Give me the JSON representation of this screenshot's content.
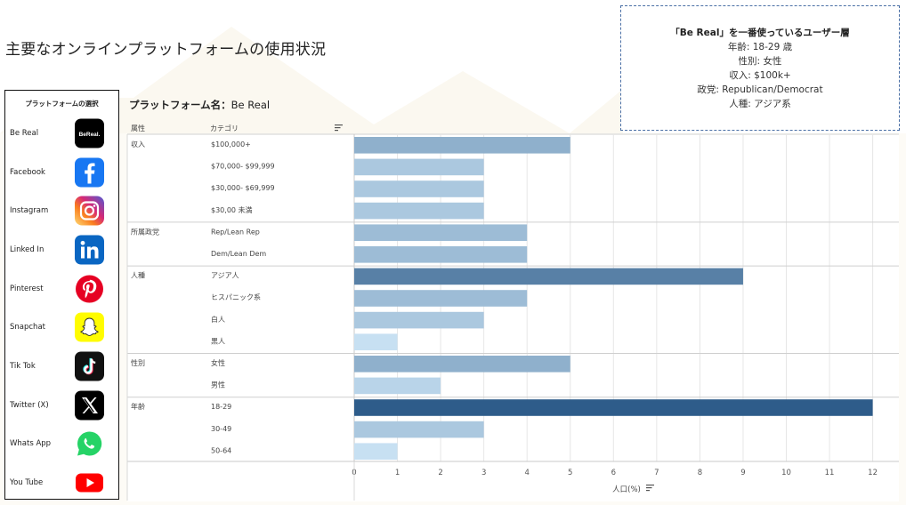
{
  "page": {
    "title": "主要なオンラインプラットフォームの使用状況"
  },
  "info_box": {
    "lines": [
      "「Be Real」を一番使っているユーザー層",
      "年齢: 18-29 歳",
      "性別: 女性",
      "収入: $100k+",
      "政党: Republican/Democrat",
      "人種: アジア系"
    ]
  },
  "sidebar": {
    "title": "プラットフォームの選択",
    "items": [
      {
        "label": "Be Real",
        "icon": "bereal-icon"
      },
      {
        "label": "Facebook",
        "icon": "facebook-icon"
      },
      {
        "label": "Instagram",
        "icon": "instagram-icon"
      },
      {
        "label": "Linked In",
        "icon": "linkedin-icon"
      },
      {
        "label": "Pinterest",
        "icon": "pinterest-icon"
      },
      {
        "label": "Snapchat",
        "icon": "snapchat-icon"
      },
      {
        "label": "Tik Tok",
        "icon": "tiktok-icon"
      },
      {
        "label": "Twitter (X)",
        "icon": "twitter-x-icon"
      },
      {
        "label": "Whats App",
        "icon": "whatsapp-icon"
      },
      {
        "label": "You Tube",
        "icon": "youtube-icon"
      }
    ]
  },
  "platform": {
    "label": "プラットフォーム名：",
    "value": "Be Real"
  },
  "columns": {
    "attribute": "属性",
    "category": "カテゴリ"
  },
  "colors": {
    "bar_max": "#2e5c8a",
    "bar_min": "#c7e0f2",
    "grid": "#e6e6e6",
    "info_border": "#4a6fa5"
  },
  "chart_data": {
    "type": "bar",
    "orientation": "horizontal",
    "xlabel": "人口(%)",
    "xlim": [
      0,
      12.5
    ],
    "xticks": [
      "0",
      "1",
      "2",
      "3",
      "4",
      "5",
      "6",
      "7",
      "8",
      "9",
      "10",
      "11",
      "12"
    ],
    "grid": true,
    "groups": [
      {
        "attribute": "収入",
        "rows": [
          {
            "category": "$100,000+",
            "value": 5
          },
          {
            "category": "$70,000- $99,999",
            "value": 3
          },
          {
            "category": "$30,000- $69,999",
            "value": 3
          },
          {
            "category": "$30,00 未満",
            "value": 3
          }
        ]
      },
      {
        "attribute": "所属政党",
        "rows": [
          {
            "category": "Rep/Lean Rep",
            "value": 4
          },
          {
            "category": "Dem/Lean Dem",
            "value": 4
          }
        ]
      },
      {
        "attribute": "人種",
        "rows": [
          {
            "category": "アジア人",
            "value": 9
          },
          {
            "category": "ヒスパニック系",
            "value": 4
          },
          {
            "category": "白人",
            "value": 3
          },
          {
            "category": "黒人",
            "value": 1
          }
        ]
      },
      {
        "attribute": "性別",
        "rows": [
          {
            "category": "女性",
            "value": 5
          },
          {
            "category": "男性",
            "value": 2
          }
        ]
      },
      {
        "attribute": "年齢",
        "rows": [
          {
            "category": "18-29",
            "value": 12
          },
          {
            "category": "30-49",
            "value": 3
          },
          {
            "category": "50-64",
            "value": 1
          }
        ]
      }
    ]
  }
}
